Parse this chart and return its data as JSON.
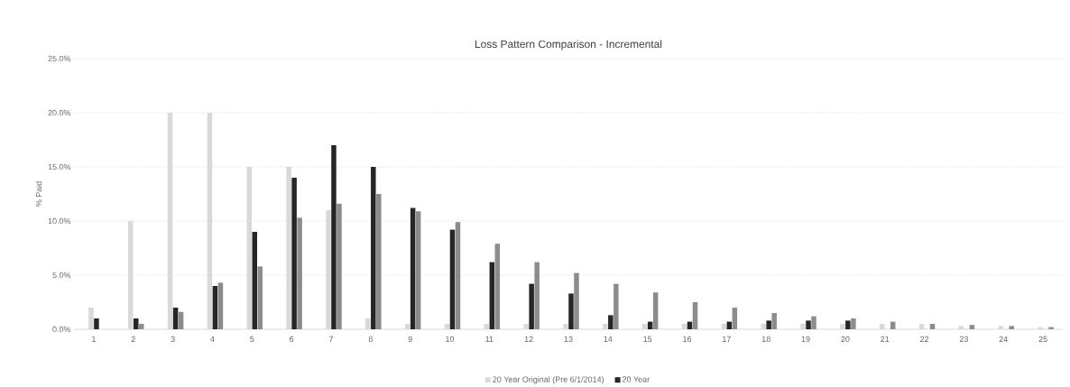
{
  "chart_data": {
    "type": "bar",
    "title": "Loss Pattern Comparison - Incremental",
    "ylabel": "% Paid",
    "categories": [
      "1",
      "2",
      "3",
      "4",
      "5",
      "6",
      "7",
      "8",
      "9",
      "10",
      "11",
      "12",
      "13",
      "14",
      "15",
      "16",
      "17",
      "18",
      "19",
      "20",
      "21",
      "22",
      "23",
      "24",
      "25"
    ],
    "series": [
      {
        "name": "20 Year Original (Pre 6/1/2014)",
        "color": "#d9d9d9",
        "values": [
          2,
          10,
          20,
          20,
          15,
          15,
          11,
          1,
          0.5,
          0.5,
          0.5,
          0.5,
          0.5,
          0.5,
          0.5,
          0.5,
          0.5,
          0.5,
          0.5,
          0.5,
          0.5,
          0.5,
          0.3,
          0.3,
          0.2
        ]
      },
      {
        "name": "20 Year",
        "color": "#262626",
        "values": [
          1,
          1,
          2,
          4,
          9,
          14,
          17,
          15,
          11.2,
          9.2,
          6.2,
          4.2,
          3.3,
          1.3,
          0.7,
          0.7,
          0.7,
          0.8,
          0.8,
          0.8,
          0,
          0,
          0,
          0,
          0
        ]
      },
      {
        "color": "#8c8c8c",
        "values": [
          0,
          0.5,
          1.6,
          4.3,
          5.8,
          10.3,
          11.6,
          12.5,
          10.9,
          9.9,
          7.9,
          6.2,
          5.2,
          4.2,
          3.4,
          2.5,
          2.0,
          1.5,
          1.2,
          1.0,
          0.7,
          0.5,
          0.4,
          0.3,
          0.2
        ]
      }
    ],
    "ylim": [
      0,
      25
    ],
    "yticks": [
      {
        "value": 0,
        "label": "0.0%"
      },
      {
        "value": 5,
        "label": "5.0%"
      },
      {
        "value": 10,
        "label": "10.0%"
      },
      {
        "value": 15,
        "label": "15.0%"
      },
      {
        "value": 20,
        "label": "20.0%"
      },
      {
        "value": 25,
        "label": "25.0%"
      }
    ],
    "grid": "y",
    "legend": "bottom"
  }
}
